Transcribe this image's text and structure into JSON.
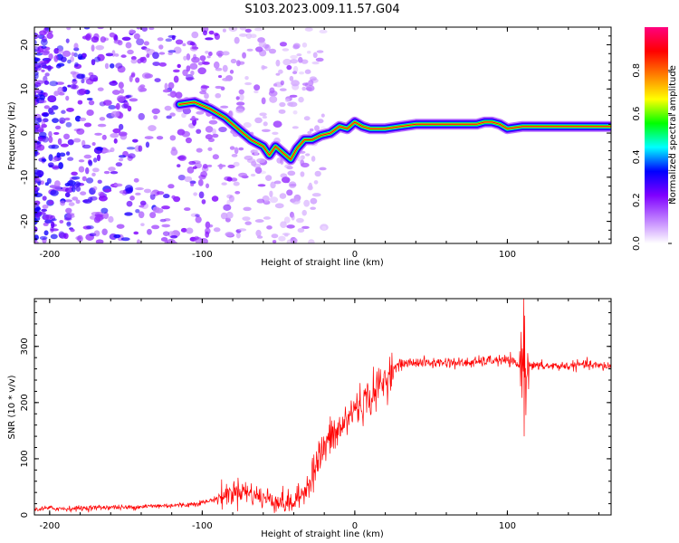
{
  "title": "S103.2023.009.11.57.G04",
  "chart_data": [
    {
      "type": "heatmap",
      "name": "spectrogram",
      "xlabel": "Height of straight line (km)",
      "ylabel": "Frequency (Hz)",
      "xlim": [
        -210,
        168
      ],
      "ylim": [
        -25,
        24
      ],
      "xticks": [
        -200,
        -100,
        0,
        100
      ],
      "yticks": [
        -20,
        -10,
        0,
        10,
        20
      ],
      "ridge_line": {
        "x": [
          -115,
          -105,
          -95,
          -85,
          -75,
          -68,
          -60,
          -56,
          -52,
          -47,
          -42,
          -38,
          -33,
          -28,
          -22,
          -16,
          -10,
          -5,
          0,
          5,
          10,
          20,
          30,
          40,
          50,
          60,
          70,
          80,
          85,
          90,
          95,
          100,
          110,
          120,
          130,
          140,
          150,
          160,
          168
        ],
        "y": [
          6.5,
          7,
          5.5,
          3.5,
          0.5,
          -1.5,
          -3,
          -5,
          -3,
          -4.5,
          -6,
          -3.5,
          -1.5,
          -1.5,
          -0.5,
          0,
          1.5,
          1,
          2.5,
          1.5,
          1,
          1,
          1.5,
          2,
          2,
          2,
          2,
          2,
          2.5,
          2.5,
          2,
          1,
          1.5,
          1.5,
          1.5,
          1.5,
          1.5,
          1.5,
          1.5
        ]
      },
      "colorbar": {
        "label": "Normalized spectral amplitude",
        "range": [
          0,
          1
        ],
        "ticks": [
          "0.0",
          "0.2",
          "0.4",
          "0.6",
          "0.8"
        ],
        "tick_values": [
          0,
          0.2,
          0.4,
          0.6,
          0.8
        ],
        "colors": [
          "#ffffff",
          "#bf7fff",
          "#7f00ff",
          "#0000ff",
          "#00ffff",
          "#00ff00",
          "#ffff00",
          "#ff7f00",
          "#ff0000",
          "#ff007f"
        ]
      }
    },
    {
      "type": "line",
      "name": "snr",
      "xlabel": "Height of straight line (km)",
      "ylabel": "SNR (10 * v/v)",
      "xlim": [
        -210,
        168
      ],
      "ylim": [
        0,
        385
      ],
      "xticks": [
        -200,
        -100,
        0,
        100
      ],
      "yticks": [
        0,
        100,
        200,
        300
      ],
      "line_color": "#ff0000",
      "series": [
        {
          "name": "SNR",
          "x": [
            -210,
            -200,
            -190,
            -180,
            -170,
            -160,
            -150,
            -140,
            -130,
            -120,
            -110,
            -100,
            -95,
            -90,
            -85,
            -80,
            -75,
            -70,
            -65,
            -60,
            -55,
            -50,
            -45,
            -40,
            -35,
            -30,
            -25,
            -20,
            -15,
            -10,
            -5,
            0,
            5,
            10,
            15,
            20,
            25,
            30,
            35,
            40,
            50,
            60,
            70,
            80,
            90,
            100,
            105,
            108,
            110,
            111,
            112,
            114,
            116,
            120,
            130,
            140,
            150,
            160,
            168
          ],
          "y": [
            10,
            12,
            11,
            12,
            13,
            14,
            13,
            15,
            16,
            17,
            18,
            22,
            25,
            30,
            35,
            40,
            45,
            40,
            35,
            30,
            28,
            25,
            20,
            22,
            35,
            60,
            90,
            120,
            140,
            150,
            170,
            190,
            200,
            210,
            225,
            240,
            260,
            268,
            270,
            272,
            270,
            272,
            270,
            272,
            275,
            275,
            270,
            265,
            280,
            320,
            230,
            275,
            265,
            265,
            265,
            265,
            268,
            265,
            265
          ]
        }
      ]
    }
  ]
}
